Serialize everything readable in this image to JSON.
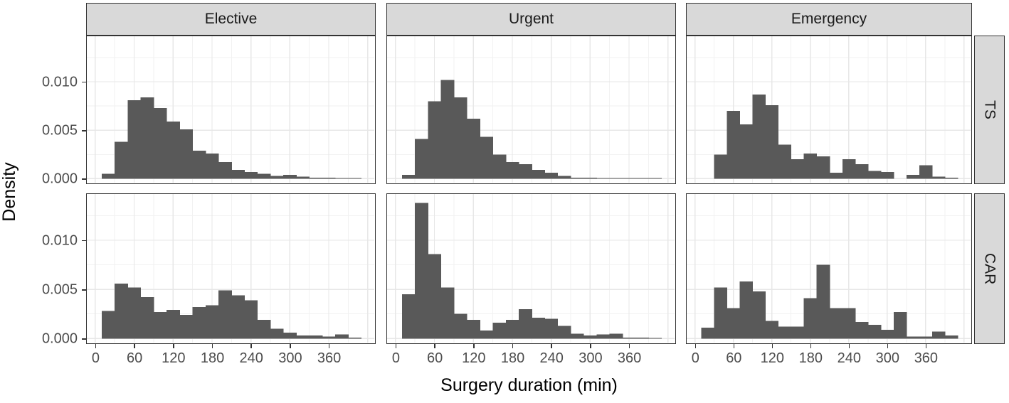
{
  "figure": {
    "x_axis_title": "Surgery duration (min)",
    "y_axis_title": "Density"
  },
  "colors": {
    "bar_fill": "#595959",
    "panel_background": "#ffffff",
    "panel_border": "#333333",
    "grid_major": "#E7E7E7",
    "grid_minor": "#F2F2F2",
    "strip_background": "#D9D9D9",
    "tick_text": "#4D4D4D",
    "axis_title_text": "#000000",
    "tick_mark": "#333333"
  },
  "chart_data": {
    "type": "bar",
    "subtype": "faceted-histograms",
    "facet_columns": [
      "Elective",
      "Urgent",
      "Emergency"
    ],
    "facet_rows": [
      "TS",
      "CAR"
    ],
    "xlabel": "Surgery duration (min)",
    "ylabel": "Density",
    "x_ticks": [
      0,
      60,
      120,
      180,
      240,
      300,
      360
    ],
    "x_tick_labels": [
      "0",
      "60",
      "120",
      "180",
      "240",
      "300",
      "360"
    ],
    "y_ticks": [
      0,
      0.005,
      0.01
    ],
    "y_tick_labels": [
      "0.000",
      "0.005",
      "0.010"
    ],
    "grid": "major and minor gridlines on",
    "legend": "none",
    "bin_width_min": 20,
    "first_bin_start_min": 10,
    "x_range": [
      -13,
      430
    ],
    "y_range": [
      -0.0004,
      0.0147
    ],
    "major_grid_x_step": 60,
    "minor_grid_x_offset": 30,
    "minor_grid_y_step": 0.0025,
    "panels": [
      {
        "row": "TS",
        "col": "Elective",
        "densities": [
          0.0005,
          0.0038,
          0.0081,
          0.0084,
          0.0073,
          0.0059,
          0.0051,
          0.0029,
          0.0026,
          0.0017,
          0.0009,
          0.0007,
          0.0005,
          0.0003,
          0.0004,
          0.0002,
          0.0001,
          0.0001,
          5e-05,
          5e-05
        ]
      },
      {
        "row": "TS",
        "col": "Urgent",
        "densities": [
          0.0004,
          0.0041,
          0.008,
          0.0102,
          0.0084,
          0.0062,
          0.0043,
          0.0025,
          0.0017,
          0.0015,
          0.0009,
          0.0006,
          0.0003,
          0.0001,
          0.0001,
          5e-05,
          5e-05,
          5e-05,
          5e-05,
          5e-05
        ]
      },
      {
        "row": "TS",
        "col": "Emergency",
        "densities": [
          0,
          0.0025,
          0.007,
          0.0056,
          0.0087,
          0.0076,
          0.0035,
          0.002,
          0.0026,
          0.0023,
          0.0006,
          0.002,
          0.0015,
          0.0008,
          0.0007,
          0,
          0.0004,
          0.0014,
          0.0002,
          0.0001
        ]
      },
      {
        "row": "CAR",
        "col": "Elective",
        "densities": [
          0.0028,
          0.0056,
          0.0052,
          0.0042,
          0.0027,
          0.0029,
          0.0024,
          0.0032,
          0.0034,
          0.0049,
          0.0044,
          0.0039,
          0.0019,
          0.001,
          0.0006,
          0.0003,
          0.0003,
          0.0002,
          0.0004,
          0.0001
        ]
      },
      {
        "row": "CAR",
        "col": "Urgent",
        "densities": [
          0.0045,
          0.0138,
          0.0086,
          0.0052,
          0.0025,
          0.0019,
          0.0008,
          0.0016,
          0.0019,
          0.003,
          0.0021,
          0.002,
          0.0013,
          0.0005,
          0.0003,
          0.0004,
          0.0005,
          0.0001,
          0.0001,
          5e-05
        ]
      },
      {
        "row": "CAR",
        "col": "Emergency",
        "densities": [
          0.0011,
          0.0052,
          0.0031,
          0.0058,
          0.0048,
          0.0018,
          0.0012,
          0.0012,
          0.0041,
          0.0075,
          0.0031,
          0.0031,
          0.0017,
          0.0014,
          0.0009,
          0.0027,
          0.0002,
          0.0002,
          0.0007,
          0.0003
        ]
      }
    ]
  }
}
